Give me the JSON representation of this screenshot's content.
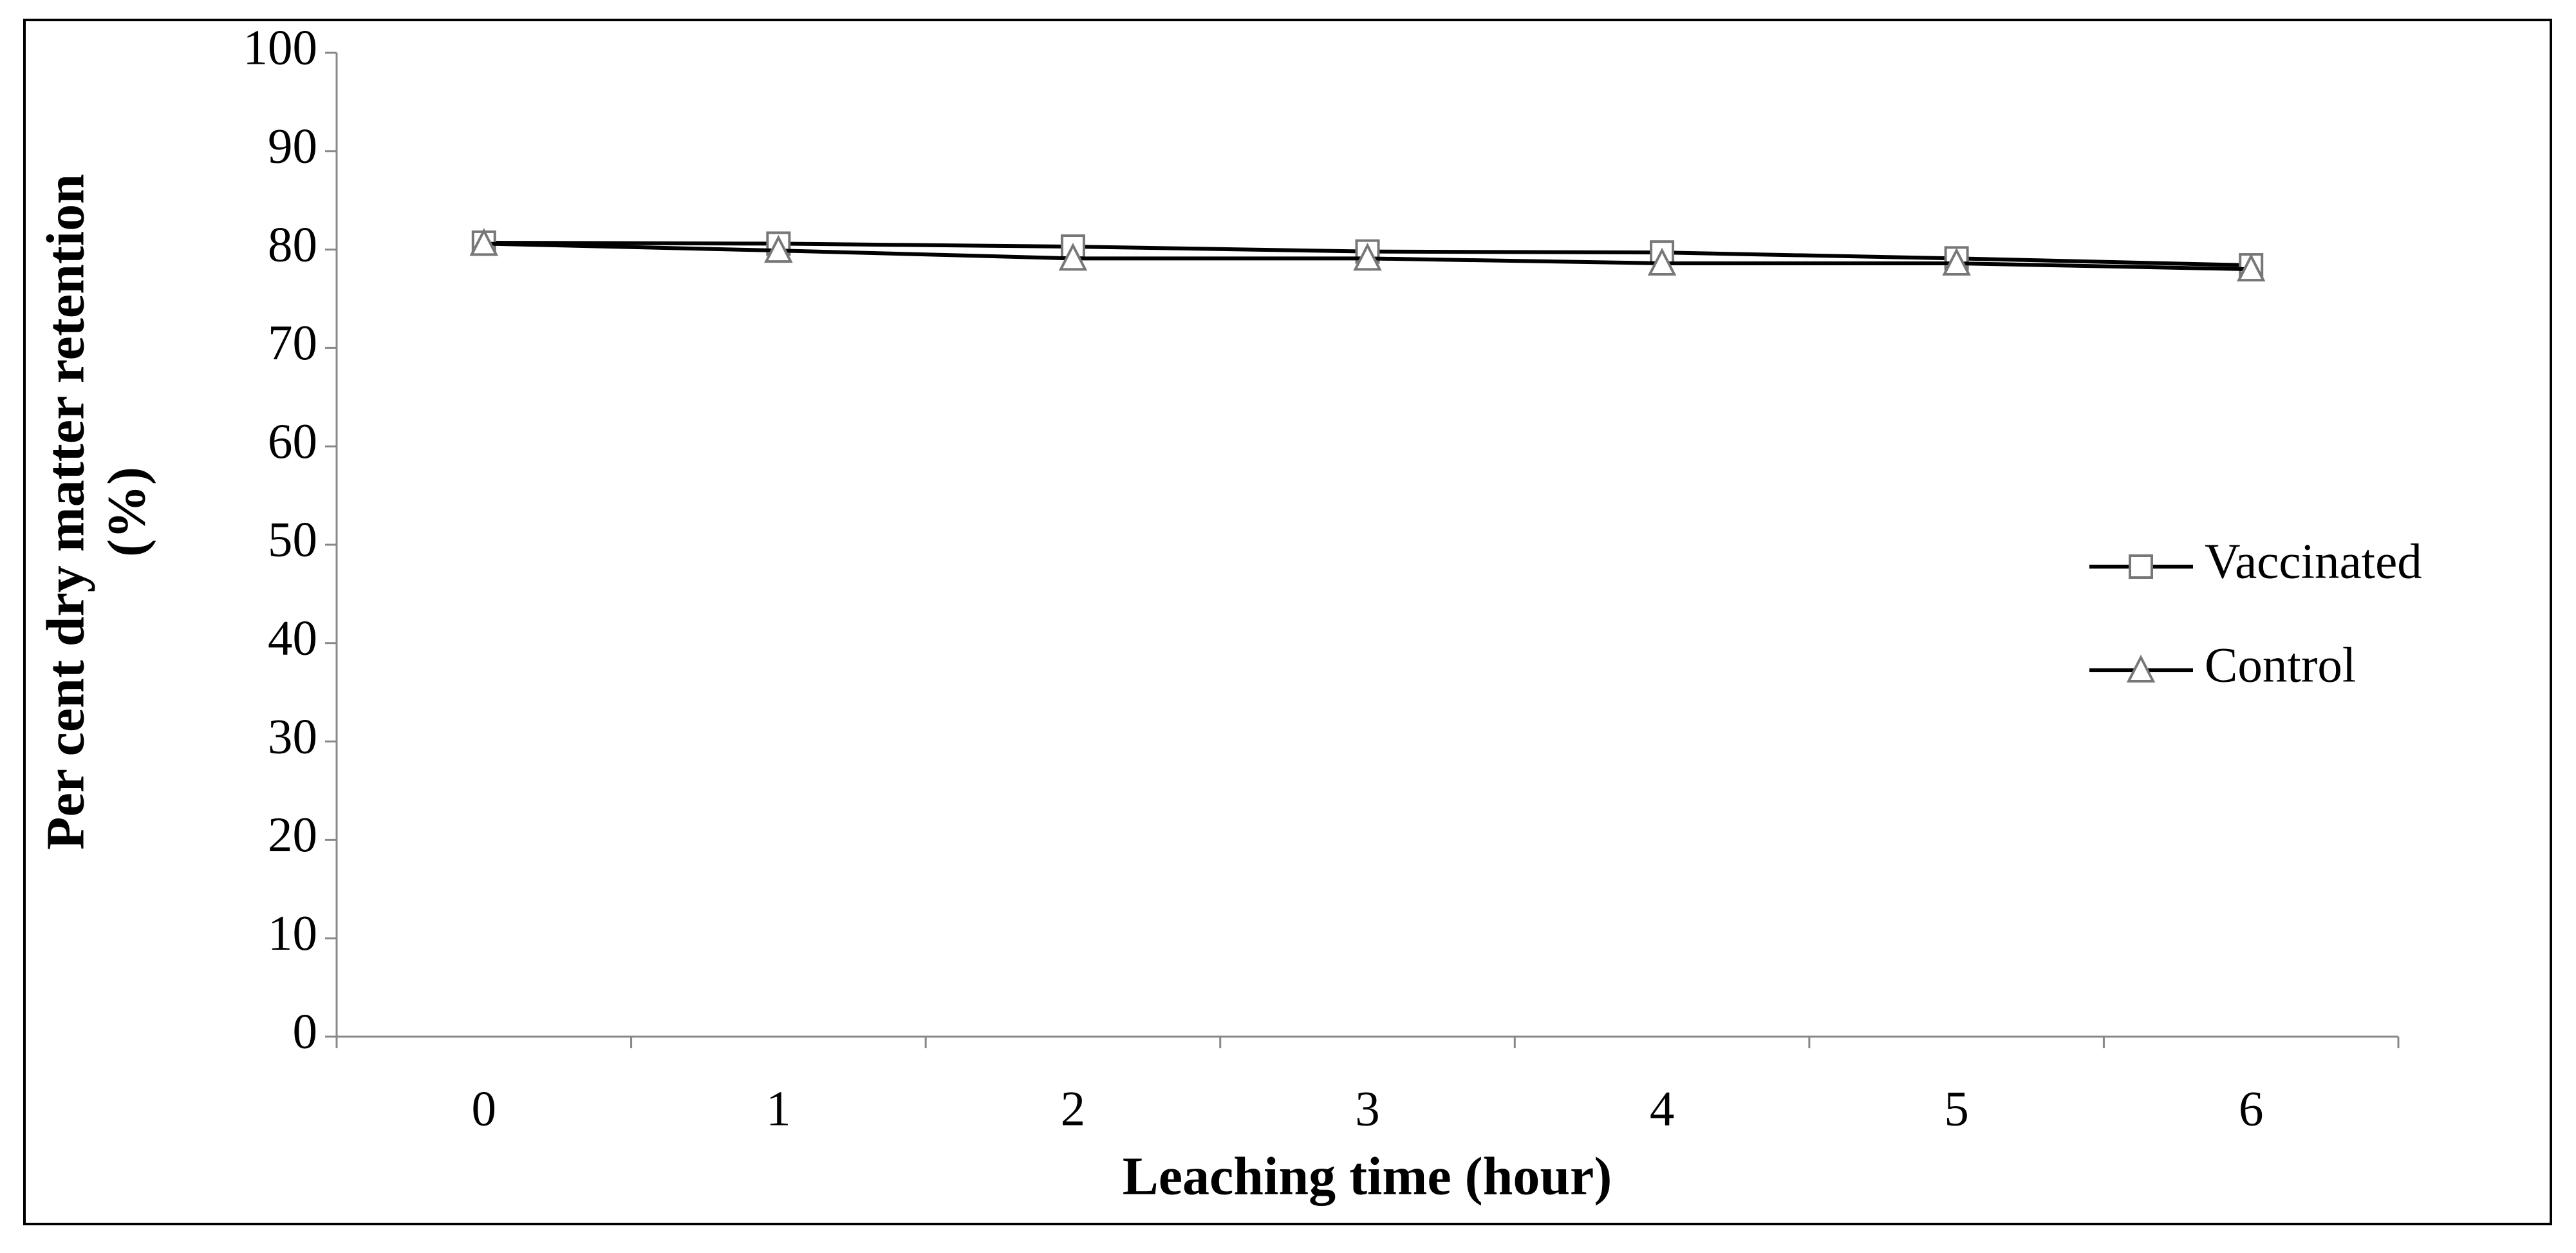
{
  "chart_data": {
    "type": "line",
    "x_label": "Leaching time (hour)",
    "y_label": [
      "Per cent dry matter retention",
      "(%)"
    ],
    "categories": [
      "0",
      "1",
      "2",
      "3",
      "4",
      "5",
      "6"
    ],
    "series": [
      {
        "name": "Vaccinated",
        "color": "#000000",
        "marker": "square",
        "values": [
          80.7,
          80.6,
          80.3,
          79.8,
          79.7,
          79.1,
          78.4
        ]
      },
      {
        "name": "Control",
        "color": "#000000",
        "marker": "triangle",
        "values": [
          80.6,
          79.9,
          79.1,
          79.1,
          78.6,
          78.6,
          78.0
        ]
      }
    ],
    "ylim": [
      0,
      100
    ],
    "yticks": [
      0,
      10,
      20,
      30,
      40,
      50,
      60,
      70,
      80,
      90,
      100
    ],
    "grid": false,
    "legend": "right"
  }
}
